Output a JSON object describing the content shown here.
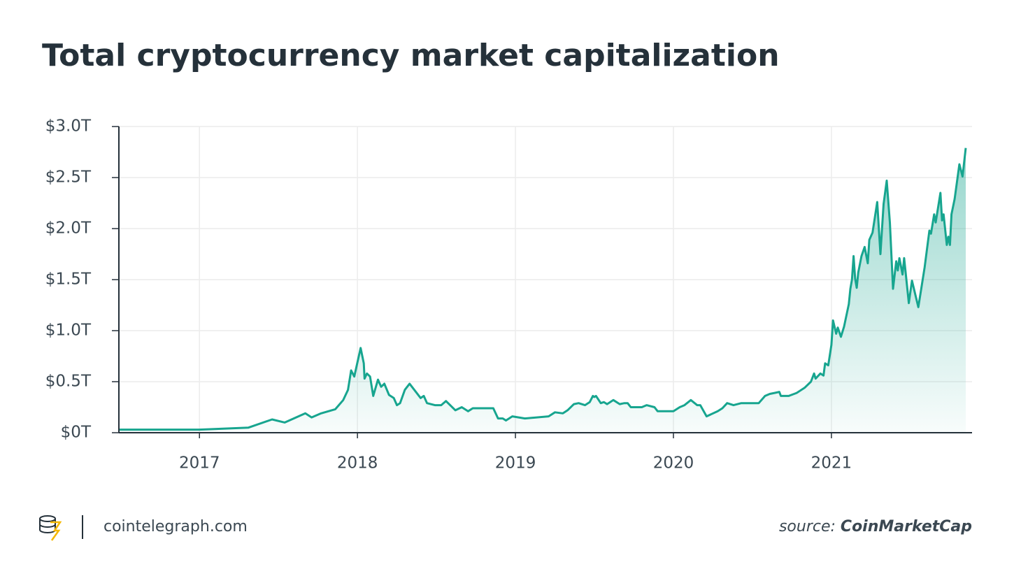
{
  "chart_data": {
    "type": "area",
    "title": "Total cryptocurrency market capitalization",
    "x": [
      2016.49,
      2017.0,
      2017.31,
      2017.46,
      2017.54,
      2017.67,
      2017.71,
      2017.77,
      2017.86,
      2017.91,
      2017.94,
      2017.96,
      2017.98,
      2018.02,
      2018.04,
      2018.045,
      2018.06,
      2018.08,
      2018.1,
      2018.13,
      2018.15,
      2018.17,
      2018.2,
      2018.23,
      2018.25,
      2018.27,
      2018.3,
      2018.33,
      2018.4,
      2018.42,
      2018.44,
      2018.49,
      2018.53,
      2018.56,
      2018.62,
      2018.66,
      2018.7,
      2018.73,
      2018.86,
      2018.89,
      2018.92,
      2018.94,
      2018.98,
      2019.06,
      2019.21,
      2019.25,
      2019.3,
      2019.33,
      2019.37,
      2019.4,
      2019.44,
      2019.47,
      2019.49,
      2019.5,
      2019.51,
      2019.54,
      2019.56,
      2019.58,
      2019.62,
      2019.66,
      2019.69,
      2019.71,
      2019.73,
      2019.8,
      2019.83,
      2019.88,
      2019.9,
      2020.0,
      2020.04,
      2020.07,
      2020.11,
      2020.15,
      2020.17,
      2020.21,
      2020.28,
      2020.31,
      2020.34,
      2020.38,
      2020.43,
      2020.54,
      2020.58,
      2020.61,
      2020.64,
      2020.67,
      2020.68,
      2020.73,
      2020.78,
      2020.83,
      2020.87,
      2020.89,
      2020.9,
      2020.93,
      2020.95,
      2020.96,
      2020.98,
      2021.0,
      2021.01,
      2021.03,
      2021.04,
      2021.06,
      2021.08,
      2021.11,
      2021.12,
      2021.13,
      2021.14,
      2021.15,
      2021.16,
      2021.17,
      2021.19,
      2021.21,
      2021.23,
      2021.24,
      2021.26,
      2021.29,
      2021.31,
      2021.33,
      2021.35,
      2021.37,
      2021.39,
      2021.41,
      2021.42,
      2021.43,
      2021.45,
      2021.46,
      2021.49,
      2021.51,
      2021.55,
      2021.59,
      2021.62,
      2021.63,
      2021.65,
      2021.66,
      2021.69,
      2021.7,
      2021.71,
      2021.73,
      2021.74,
      2021.75,
      2021.76,
      2021.78,
      2021.81,
      2021.83,
      2021.85
    ],
    "series": [
      {
        "color": "#17a58f",
        "values": [
          0.03,
          0.03,
          0.05,
          0.13,
          0.1,
          0.19,
          0.15,
          0.19,
          0.23,
          0.32,
          0.42,
          0.61,
          0.55,
          0.83,
          0.68,
          0.53,
          0.58,
          0.55,
          0.36,
          0.52,
          0.45,
          0.48,
          0.37,
          0.34,
          0.27,
          0.29,
          0.42,
          0.48,
          0.34,
          0.36,
          0.29,
          0.27,
          0.27,
          0.31,
          0.22,
          0.25,
          0.21,
          0.24,
          0.24,
          0.14,
          0.14,
          0.12,
          0.16,
          0.14,
          0.16,
          0.2,
          0.19,
          0.22,
          0.28,
          0.29,
          0.27,
          0.3,
          0.36,
          0.35,
          0.36,
          0.29,
          0.3,
          0.28,
          0.32,
          0.28,
          0.29,
          0.29,
          0.25,
          0.25,
          0.27,
          0.25,
          0.21,
          0.21,
          0.25,
          0.27,
          0.32,
          0.27,
          0.27,
          0.16,
          0.21,
          0.24,
          0.29,
          0.27,
          0.29,
          0.29,
          0.36,
          0.38,
          0.39,
          0.4,
          0.36,
          0.36,
          0.39,
          0.44,
          0.5,
          0.58,
          0.53,
          0.58,
          0.56,
          0.68,
          0.66,
          0.86,
          1.1,
          0.97,
          1.03,
          0.94,
          1.04,
          1.26,
          1.41,
          1.5,
          1.73,
          1.51,
          1.42,
          1.57,
          1.73,
          1.82,
          1.66,
          1.89,
          1.96,
          2.26,
          1.75,
          2.24,
          2.47,
          2.06,
          1.41,
          1.68,
          1.59,
          1.71,
          1.55,
          1.71,
          1.27,
          1.49,
          1.23,
          1.62,
          1.98,
          1.95,
          2.14,
          2.06,
          2.35,
          2.08,
          2.14,
          1.84,
          1.92,
          1.84,
          2.14,
          2.29,
          2.63,
          2.51,
          2.79
        ]
      }
    ],
    "xlim": [
      2016.49,
      2021.89
    ],
    "xticks": [
      2017,
      2018,
      2019,
      2020,
      2021
    ],
    "ylim": [
      0,
      3
    ],
    "yticks": [
      {
        "value": 0,
        "label": "$0T"
      },
      {
        "value": 0.5,
        "label": "$0.5T"
      },
      {
        "value": 1,
        "label": "$1.0T"
      },
      {
        "value": 1.5,
        "label": "$1.5T"
      },
      {
        "value": 2,
        "label": "$2.0T"
      },
      {
        "value": 2.5,
        "label": "$2.5T"
      },
      {
        "value": 3,
        "label": "$3.0T"
      }
    ],
    "grid": true
  },
  "footer": {
    "site": "cointelegraph.com",
    "source_label": "source:",
    "source_name": "CoinMarketCap"
  }
}
